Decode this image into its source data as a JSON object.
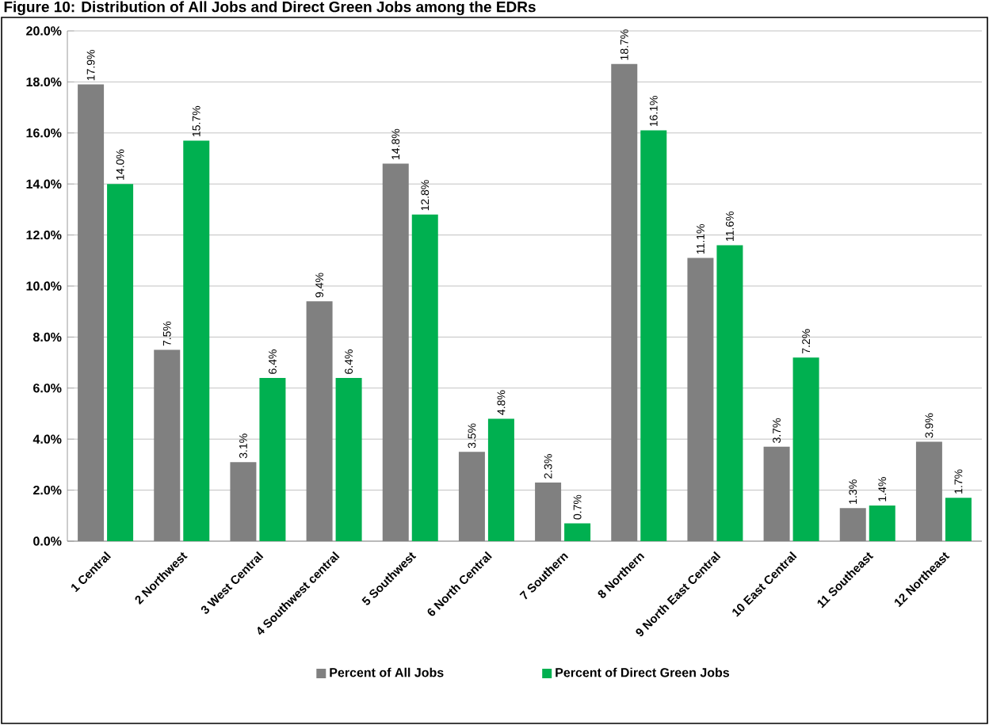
{
  "chart_data": {
    "type": "bar",
    "title": "Figure 10: Distribution of All Jobs and Direct Green Jobs among the EDRs",
    "categories": [
      "1  Central",
      "2  Northwest",
      "3  West Central",
      "4  Southwest central",
      "5  Southwest",
      "6  North Central",
      "7  Southern",
      "8  Northern",
      "9  North East Central",
      "10 East Central",
      "11 Southeast",
      "12 Northeast"
    ],
    "series": [
      {
        "name": "Percent of All Jobs",
        "color": "#808080",
        "values": [
          17.9,
          7.5,
          3.1,
          9.4,
          14.8,
          3.5,
          2.3,
          18.7,
          11.1,
          3.7,
          1.3,
          3.9
        ],
        "value_labels": [
          "17.9%",
          "7.5%",
          "3.1%",
          "9.4%",
          "14.8%",
          "3.5%",
          "2.3%",
          "18.7%",
          "11.1%",
          "3.7%",
          "1.3%",
          "3.9%"
        ]
      },
      {
        "name": "Percent of Direct Green Jobs",
        "color": "#00b050",
        "values": [
          14.0,
          15.7,
          6.4,
          6.4,
          12.8,
          4.8,
          0.7,
          16.1,
          11.6,
          7.2,
          1.4,
          1.7
        ],
        "value_labels": [
          "14.0%",
          "15.7%",
          "6.4%",
          "6.4%",
          "12.8%",
          "4.8%",
          "0.7%",
          "16.1%",
          "11.6%",
          "7.2%",
          "1.4%",
          "1.7%"
        ]
      }
    ],
    "ylim": [
      0,
      20
    ],
    "yticks": [
      {
        "value": 0,
        "label": "0.0%"
      },
      {
        "value": 2,
        "label": "2.0%"
      },
      {
        "value": 4,
        "label": "4.0%"
      },
      {
        "value": 6,
        "label": "6.0%"
      },
      {
        "value": 8,
        "label": "8.0%"
      },
      {
        "value": 10,
        "label": "10.0%"
      },
      {
        "value": 12,
        "label": "12.0%"
      },
      {
        "value": 14,
        "label": "14.0%"
      },
      {
        "value": 16,
        "label": "16.0%"
      },
      {
        "value": 18,
        "label": "18.0%"
      },
      {
        "value": 20,
        "label": "20.0%"
      }
    ],
    "grid": "y",
    "legend": "bottom"
  }
}
